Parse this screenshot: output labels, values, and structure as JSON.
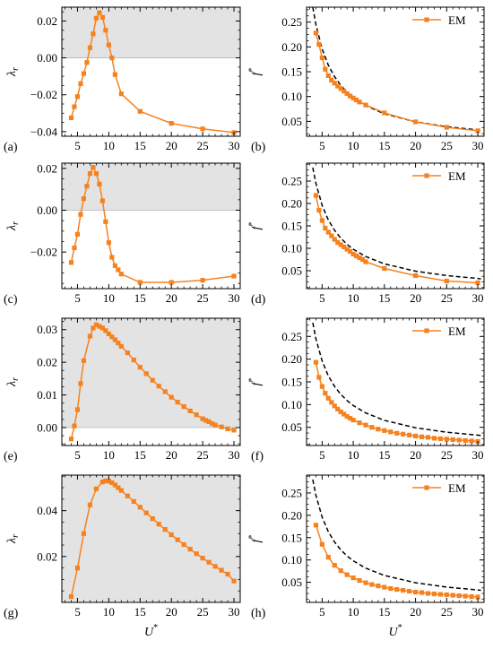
{
  "figure": {
    "xlabel": "U*",
    "colors": {
      "series": "#f5821f",
      "reference": "#000000",
      "shade": "#e3e3e3"
    }
  },
  "chart_data": [
    {
      "panel_label": "(a)",
      "type": "line",
      "ylabel": "λr",
      "xlim": [
        2.5,
        31
      ],
      "ylim": [
        -0.0425,
        0.0275
      ],
      "xticks": [
        5,
        10,
        15,
        20,
        25,
        30
      ],
      "yticks": [
        -0.04,
        -0.02,
        0.0,
        0.02
      ],
      "ytick_labels": [
        "−0.04",
        "−0.02",
        "0.00",
        "0.02"
      ],
      "shaded_region": "λr > 0",
      "grid": false,
      "series": [
        {
          "x": [
            4,
            4.5,
            5,
            5.5,
            6,
            6.5,
            7,
            7.5,
            8,
            8.5,
            9,
            9.5,
            10,
            10.5,
            11,
            12,
            15,
            20,
            25,
            30
          ],
          "y": [
            -0.0325,
            -0.0265,
            -0.021,
            -0.014,
            -0.0085,
            -0.0025,
            0.0055,
            0.013,
            0.0215,
            0.0245,
            0.022,
            0.015,
            0.007,
            0.0,
            -0.009,
            -0.0195,
            -0.029,
            -0.0355,
            -0.0385,
            -0.0405
          ]
        }
      ]
    },
    {
      "panel_label": "(b)",
      "type": "line",
      "ylabel": "f*",
      "xlim": [
        2.5,
        31
      ],
      "ylim": [
        0.02,
        0.28
      ],
      "xticks": [
        5,
        10,
        15,
        20,
        25,
        30
      ],
      "yticks": [
        0.05,
        0.1,
        0.15,
        0.2,
        0.25
      ],
      "ytick_labels": [
        "0.05",
        "0.10",
        "0.15",
        "0.20",
        "0.25"
      ],
      "legend": {
        "label": "EM",
        "placement": "top-right"
      },
      "grid": false,
      "reference_curve": {
        "style": "dashed",
        "x": [
          3.5,
          4,
          5,
          6,
          7,
          8,
          9,
          10,
          12,
          15,
          20,
          25,
          30.5
        ],
        "y": [
          0.28,
          0.245,
          0.196,
          0.163,
          0.14,
          0.1225,
          0.109,
          0.098,
          0.0817,
          0.0653,
          0.049,
          0.0392,
          0.0321
        ]
      },
      "series": [
        {
          "name": "EM",
          "x": [
            4,
            4.5,
            5,
            5.5,
            6,
            6.5,
            7,
            7.5,
            8,
            8.5,
            9,
            9.5,
            10,
            10.5,
            11,
            12,
            15,
            20,
            25,
            30
          ],
          "y": [
            0.228,
            0.205,
            0.178,
            0.155,
            0.142,
            0.133,
            0.127,
            0.121,
            0.116,
            0.111,
            0.106,
            0.101,
            0.097,
            0.093,
            0.089,
            0.083,
            0.067,
            0.049,
            0.038,
            0.031
          ]
        }
      ]
    },
    {
      "panel_label": "(c)",
      "type": "line",
      "ylabel": "λr",
      "xlim": [
        2.5,
        31
      ],
      "ylim": [
        -0.0375,
        0.0225
      ],
      "xticks": [
        5,
        10,
        15,
        20,
        25,
        30
      ],
      "yticks": [
        -0.02,
        0.0,
        0.02
      ],
      "ytick_labels": [
        "−0.02",
        "0.00",
        "0.02"
      ],
      "shaded_region": "λr > 0",
      "grid": false,
      "series": [
        {
          "x": [
            4,
            4.5,
            5,
            5.5,
            6,
            6.5,
            7,
            7.5,
            8,
            8.5,
            9,
            9.5,
            10,
            10.5,
            11,
            11.5,
            12,
            15,
            20,
            25,
            30
          ],
          "y": [
            -0.025,
            -0.018,
            -0.0115,
            -0.002,
            0.0055,
            0.0115,
            0.0175,
            0.0205,
            0.0175,
            0.0125,
            0.0045,
            -0.0055,
            -0.0155,
            -0.0225,
            -0.0265,
            -0.0285,
            -0.0305,
            -0.0345,
            -0.0345,
            -0.0335,
            -0.0315
          ]
        }
      ]
    },
    {
      "panel_label": "(d)",
      "type": "line",
      "ylabel": "f*",
      "xlim": [
        2.5,
        31
      ],
      "ylim": [
        0.01,
        0.29
      ],
      "xticks": [
        5,
        10,
        15,
        20,
        25,
        30
      ],
      "yticks": [
        0.05,
        0.1,
        0.15,
        0.2,
        0.25
      ],
      "ytick_labels": [
        "0.05",
        "0.10",
        "0.15",
        "0.20",
        "0.25"
      ],
      "legend": {
        "label": "EM",
        "placement": "top-right"
      },
      "grid": false,
      "reference_curve": {
        "style": "dashed",
        "x": [
          3.5,
          4,
          5,
          6,
          7,
          8,
          9,
          10,
          12,
          15,
          20,
          25,
          30.5
        ],
        "y": [
          0.28,
          0.245,
          0.196,
          0.163,
          0.14,
          0.1225,
          0.109,
          0.098,
          0.0817,
          0.0653,
          0.049,
          0.0392,
          0.0321
        ]
      },
      "series": [
        {
          "name": "EM",
          "x": [
            4,
            4.5,
            5,
            5.5,
            6,
            6.5,
            7,
            7.5,
            8,
            8.5,
            9,
            9.5,
            10,
            10.5,
            11,
            11.5,
            12,
            15,
            20,
            25,
            30
          ],
          "y": [
            0.218,
            0.185,
            0.162,
            0.145,
            0.136,
            0.128,
            0.12,
            0.113,
            0.108,
            0.103,
            0.098,
            0.093,
            0.087,
            0.083,
            0.079,
            0.075,
            0.07,
            0.055,
            0.039,
            0.027,
            0.023
          ]
        }
      ]
    },
    {
      "panel_label": "(e)",
      "type": "line",
      "ylabel": "λr",
      "xlim": [
        2.5,
        31
      ],
      "ylim": [
        -0.0055,
        0.0335
      ],
      "xticks": [
        5,
        10,
        15,
        20,
        25,
        30
      ],
      "yticks": [
        0.0,
        0.01,
        0.02,
        0.03
      ],
      "ytick_labels": [
        "0.00",
        "0.01",
        "0.02",
        "0.03"
      ],
      "shaded_region": "λr > 0",
      "grid": false,
      "series": [
        {
          "x": [
            4,
            4.5,
            5,
            5.5,
            6,
            7,
            7.5,
            8,
            8.5,
            9,
            9.5,
            10,
            10.5,
            11,
            11.5,
            12,
            13,
            14,
            15,
            16,
            17,
            18,
            19,
            20,
            21,
            22,
            23,
            24,
            25,
            25.5,
            26,
            26.5,
            27,
            28,
            29,
            30
          ],
          "y": [
            -0.0035,
            0.0005,
            0.0055,
            0.0135,
            0.0205,
            0.028,
            0.0305,
            0.0315,
            0.031,
            0.0305,
            0.0297,
            0.0287,
            0.0278,
            0.0269,
            0.0259,
            0.0249,
            0.0229,
            0.0207,
            0.0185,
            0.0165,
            0.0145,
            0.0127,
            0.011,
            0.0093,
            0.0078,
            0.0064,
            0.0051,
            0.0039,
            0.0027,
            0.0022,
            0.0018,
            0.0012,
            0.0008,
            0.0002,
            -0.0004,
            -0.0008
          ]
        }
      ]
    },
    {
      "panel_label": "(f)",
      "type": "line",
      "ylabel": "f*",
      "xlim": [
        2.5,
        31
      ],
      "ylim": [
        0.01,
        0.29
      ],
      "xticks": [
        5,
        10,
        15,
        20,
        25,
        30
      ],
      "yticks": [
        0.05,
        0.1,
        0.15,
        0.2,
        0.25
      ],
      "ytick_labels": [
        "0.05",
        "0.10",
        "0.15",
        "0.20",
        "0.25"
      ],
      "legend": {
        "label": "EM",
        "placement": "top-right"
      },
      "grid": false,
      "reference_curve": {
        "style": "dashed",
        "x": [
          3.5,
          4,
          5,
          6,
          7,
          8,
          9,
          10,
          12,
          15,
          20,
          25,
          30.5
        ],
        "y": [
          0.28,
          0.245,
          0.196,
          0.163,
          0.14,
          0.1225,
          0.109,
          0.098,
          0.0817,
          0.0653,
          0.049,
          0.0392,
          0.0321
        ]
      },
      "series": [
        {
          "name": "EM",
          "x": [
            4,
            4.5,
            5,
            5.5,
            6,
            6.5,
            7,
            7.5,
            8,
            8.5,
            9,
            9.5,
            10,
            11,
            12,
            13,
            14,
            15,
            16,
            17,
            18,
            19,
            20,
            21,
            22,
            23,
            24,
            25,
            26,
            27,
            28,
            29,
            30
          ],
          "y": [
            0.193,
            0.16,
            0.14,
            0.125,
            0.114,
            0.105,
            0.097,
            0.09,
            0.084,
            0.079,
            0.074,
            0.07,
            0.066,
            0.06,
            0.055,
            0.05,
            0.046,
            0.043,
            0.04,
            0.037,
            0.035,
            0.033,
            0.031,
            0.029,
            0.028,
            0.026,
            0.025,
            0.024,
            0.023,
            0.022,
            0.021,
            0.02,
            0.019
          ]
        }
      ]
    },
    {
      "panel_label": "(g)",
      "type": "line",
      "ylabel": "λr",
      "xlim": [
        2.5,
        31
      ],
      "ylim": [
        0.0,
        0.0555
      ],
      "xticks": [
        5,
        10,
        15,
        20,
        25,
        30
      ],
      "yticks": [
        0.02,
        0.04
      ],
      "ytick_labels": [
        "0.02",
        "0.04"
      ],
      "shaded_region": "λr > 0",
      "grid": false,
      "series": [
        {
          "x": [
            4,
            5,
            6,
            7,
            8,
            9,
            9.5,
            10,
            10.5,
            11,
            11.5,
            12,
            13,
            14,
            15,
            16,
            17,
            18,
            19,
            20,
            21,
            22,
            23,
            24,
            25,
            26,
            27,
            28,
            29,
            30
          ],
          "y": [
            0.0025,
            0.015,
            0.03,
            0.0425,
            0.0495,
            0.0525,
            0.053,
            0.0528,
            0.0522,
            0.0512,
            0.05,
            0.0488,
            0.0464,
            0.044,
            0.0415,
            0.039,
            0.0365,
            0.0341,
            0.0318,
            0.0295,
            0.0273,
            0.0252,
            0.0232,
            0.0212,
            0.0193,
            0.0175,
            0.0157,
            0.014,
            0.0123,
            0.0093
          ]
        }
      ]
    },
    {
      "panel_label": "(h)",
      "type": "line",
      "ylabel": "f*",
      "xlim": [
        2.5,
        31
      ],
      "ylim": [
        0.005,
        0.29
      ],
      "xticks": [
        5,
        10,
        15,
        20,
        25,
        30
      ],
      "yticks": [
        0.05,
        0.1,
        0.15,
        0.2,
        0.25
      ],
      "ytick_labels": [
        "0.05",
        "0.10",
        "0.15",
        "0.20",
        "0.25"
      ],
      "legend": {
        "label": "EM",
        "placement": "top-right"
      },
      "grid": false,
      "reference_curve": {
        "style": "dashed",
        "x": [
          3.5,
          4,
          5,
          6,
          7,
          8,
          9,
          10,
          12,
          15,
          20,
          25,
          30.5
        ],
        "y": [
          0.28,
          0.245,
          0.196,
          0.163,
          0.14,
          0.1225,
          0.109,
          0.098,
          0.0817,
          0.0653,
          0.049,
          0.0392,
          0.0321
        ]
      },
      "series": [
        {
          "name": "EM",
          "x": [
            4,
            5,
            6,
            7,
            8,
            9,
            10,
            11,
            12,
            13,
            14,
            15,
            16,
            17,
            18,
            19,
            20,
            21,
            22,
            23,
            24,
            25,
            26,
            27,
            28,
            29,
            30
          ],
          "y": [
            0.178,
            0.135,
            0.106,
            0.088,
            0.076,
            0.067,
            0.06,
            0.054,
            0.049,
            0.045,
            0.042,
            0.039,
            0.036,
            0.034,
            0.032,
            0.03,
            0.028,
            0.027,
            0.025,
            0.024,
            0.023,
            0.022,
            0.021,
            0.02,
            0.019,
            0.018,
            0.017
          ]
        }
      ]
    }
  ]
}
